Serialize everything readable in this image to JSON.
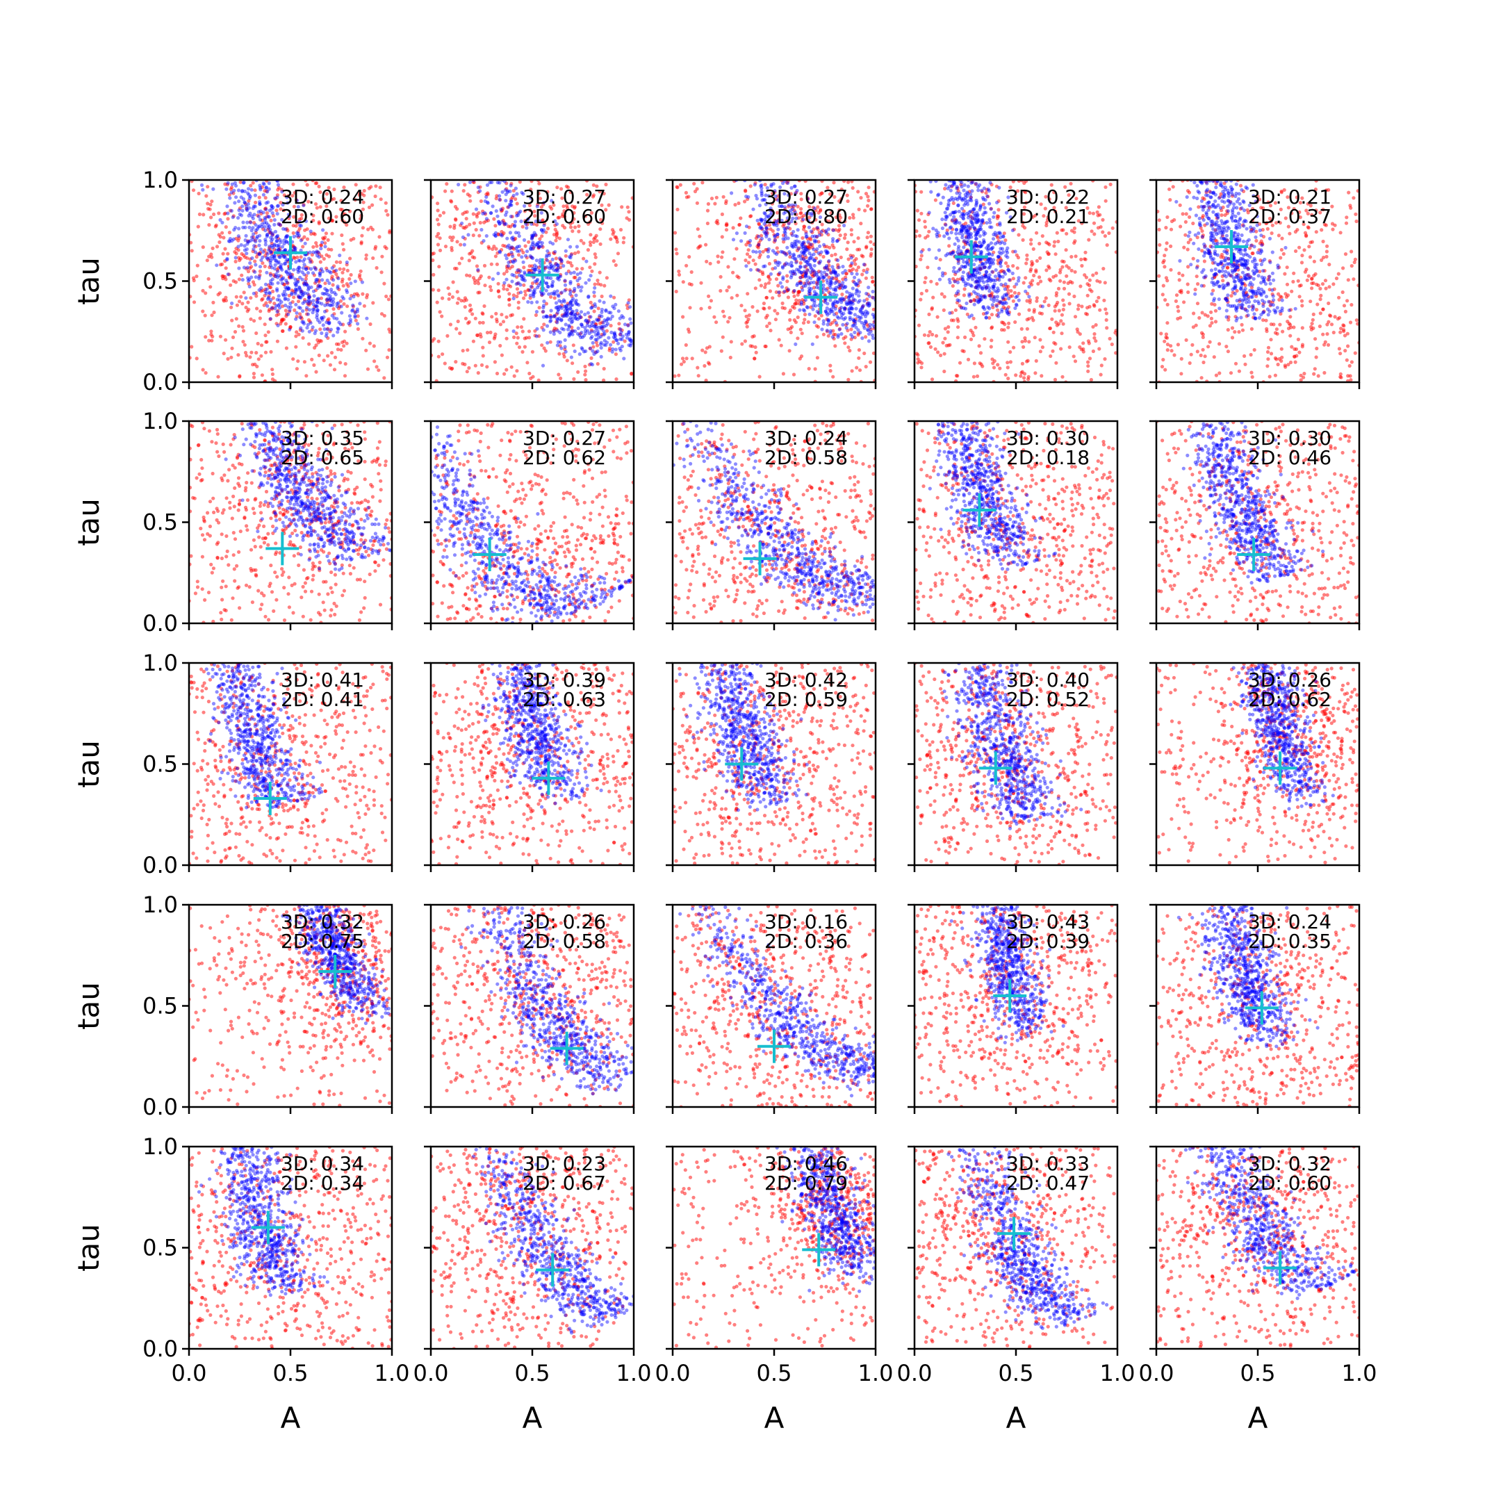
{
  "chart_data": {
    "type": "scatter",
    "layout": {
      "rows": 5,
      "cols": 5
    },
    "xlabel": "A",
    "ylabel": "tau",
    "xlim": [
      0,
      1
    ],
    "ylim": [
      0,
      1
    ],
    "xticks": [
      0.0,
      0.5,
      1.0
    ],
    "yticks": [
      0.0,
      0.5,
      1.0
    ],
    "xtick_labels": [
      "0.0",
      "0.5",
      "1.0"
    ],
    "ytick_labels": [
      "0.0",
      "0.5",
      "1.0"
    ],
    "grid": false,
    "colors": {
      "series_3d": "#0000ff",
      "series_2d": "#ff0000",
      "marker": "#17becf"
    },
    "panels": [
      {
        "label3d": "3D: 0.24",
        "label2d": "2D: 0.60",
        "marker": [
          0.5,
          0.64
        ],
        "blue": {
          "kind": "curve",
          "cx": 0.45,
          "cy": 0.62,
          "width": 0.1,
          "ext": 0.35,
          "slope": -1.9
        },
        "red": {
          "kind": "band",
          "cx": 0.5,
          "cy": 0.6,
          "spread": 0.28
        }
      },
      {
        "label3d": "3D: 0.27",
        "label2d": "2D: 0.60",
        "marker": [
          0.55,
          0.53
        ],
        "blue": {
          "kind": "curve",
          "cx": 0.58,
          "cy": 0.48,
          "width": 0.09,
          "ext": 0.48,
          "slope": -1.4
        },
        "red": {
          "kind": "band",
          "cx": 0.45,
          "cy": 0.58,
          "spread": 0.3
        }
      },
      {
        "label3d": "3D: 0.27",
        "label2d": "2D: 0.80",
        "marker": [
          0.73,
          0.42
        ],
        "blue": {
          "kind": "curve",
          "cx": 0.66,
          "cy": 0.58,
          "width": 0.09,
          "ext": 0.38,
          "slope": -1.6
        },
        "red": {
          "kind": "band",
          "cx": 0.7,
          "cy": 0.6,
          "spread": 0.26
        }
      },
      {
        "label3d": "3D: 0.22",
        "label2d": "2D: 0.21",
        "marker": [
          0.28,
          0.62
        ],
        "blue": {
          "kind": "curve",
          "cx": 0.28,
          "cy": 0.72,
          "width": 0.08,
          "ext": 0.3,
          "slope": -4.0
        },
        "red": {
          "kind": "band",
          "cx": 0.5,
          "cy": 0.45,
          "spread": 0.35
        }
      },
      {
        "label3d": "3D: 0.21",
        "label2d": "2D: 0.37",
        "marker": [
          0.37,
          0.67
        ],
        "blue": {
          "kind": "curve",
          "cx": 0.35,
          "cy": 0.72,
          "width": 0.08,
          "ext": 0.32,
          "slope": -4.0
        },
        "red": {
          "kind": "band",
          "cx": 0.55,
          "cy": 0.45,
          "spread": 0.4
        }
      },
      {
        "label3d": "3D: 0.35",
        "label2d": "2D: 0.65",
        "marker": [
          0.46,
          0.37
        ],
        "blue": {
          "kind": "curve",
          "cx": 0.55,
          "cy": 0.65,
          "width": 0.09,
          "ext": 0.35,
          "slope": -1.6
        },
        "red": {
          "kind": "band",
          "cx": 0.55,
          "cy": 0.62,
          "spread": 0.3
        }
      },
      {
        "label3d": "3D: 0.27",
        "label2d": "2D: 0.62",
        "marker": [
          0.29,
          0.34
        ],
        "blue": {
          "kind": "curve",
          "cx": 0.3,
          "cy": 0.35,
          "width": 0.09,
          "ext": 0.48,
          "slope": -1.2
        },
        "red": {
          "kind": "band",
          "cx": 0.5,
          "cy": 0.3,
          "spread": 0.34
        }
      },
      {
        "label3d": "3D: 0.24",
        "label2d": "2D: 0.58",
        "marker": [
          0.43,
          0.32
        ],
        "blue": {
          "kind": "curve",
          "cx": 0.55,
          "cy": 0.35,
          "width": 0.08,
          "ext": 0.45,
          "slope": -0.9
        },
        "red": {
          "kind": "band",
          "cx": 0.5,
          "cy": 0.4,
          "spread": 0.34
        }
      },
      {
        "label3d": "3D: 0.30",
        "label2d": "2D: 0.18",
        "marker": [
          0.32,
          0.56
        ],
        "blue": {
          "kind": "curve",
          "cx": 0.32,
          "cy": 0.68,
          "width": 0.08,
          "ext": 0.32,
          "slope": -3.0
        },
        "red": {
          "kind": "band",
          "cx": 0.45,
          "cy": 0.5,
          "spread": 0.34
        }
      },
      {
        "label3d": "3D: 0.30",
        "label2d": "2D: 0.46",
        "marker": [
          0.48,
          0.34
        ],
        "blue": {
          "kind": "curve",
          "cx": 0.4,
          "cy": 0.62,
          "width": 0.08,
          "ext": 0.35,
          "slope": -2.8
        },
        "red": {
          "kind": "band",
          "cx": 0.55,
          "cy": 0.45,
          "spread": 0.36
        }
      },
      {
        "label3d": "3D: 0.41",
        "label2d": "2D: 0.41",
        "marker": [
          0.4,
          0.33
        ],
        "blue": {
          "kind": "curve",
          "cx": 0.3,
          "cy": 0.7,
          "width": 0.08,
          "ext": 0.35,
          "slope": -4.0
        },
        "red": {
          "kind": "band",
          "cx": 0.4,
          "cy": 0.5,
          "spread": 0.36
        }
      },
      {
        "label3d": "3D: 0.39",
        "label2d": "2D: 0.63",
        "marker": [
          0.58,
          0.43
        ],
        "blue": {
          "kind": "curve",
          "cx": 0.5,
          "cy": 0.72,
          "width": 0.08,
          "ext": 0.3,
          "slope": -3.5
        },
        "red": {
          "kind": "band",
          "cx": 0.5,
          "cy": 0.6,
          "spread": 0.32
        }
      },
      {
        "label3d": "3D: 0.42",
        "label2d": "2D: 0.59",
        "marker": [
          0.34,
          0.5
        ],
        "blue": {
          "kind": "curve",
          "cx": 0.33,
          "cy": 0.7,
          "width": 0.08,
          "ext": 0.32,
          "slope": -3.5
        },
        "red": {
          "kind": "band",
          "cx": 0.45,
          "cy": 0.55,
          "spread": 0.32
        }
      },
      {
        "label3d": "3D: 0.40",
        "label2d": "2D: 0.52",
        "marker": [
          0.4,
          0.48
        ],
        "blue": {
          "kind": "curve",
          "cx": 0.42,
          "cy": 0.6,
          "width": 0.08,
          "ext": 0.32,
          "slope": -3.0
        },
        "red": {
          "kind": "band",
          "cx": 0.45,
          "cy": 0.55,
          "spread": 0.32
        }
      },
      {
        "label3d": "3D: 0.26",
        "label2d": "2D: 0.62",
        "marker": [
          0.61,
          0.48
        ],
        "blue": {
          "kind": "curve",
          "cx": 0.6,
          "cy": 0.7,
          "width": 0.07,
          "ext": 0.28,
          "slope": -4.0
        },
        "red": {
          "kind": "band",
          "cx": 0.7,
          "cy": 0.62,
          "spread": 0.24
        }
      },
      {
        "label3d": "3D: 0.32",
        "label2d": "2D: 0.75",
        "marker": [
          0.72,
          0.67
        ],
        "blue": {
          "kind": "curve",
          "cx": 0.7,
          "cy": 0.8,
          "width": 0.07,
          "ext": 0.25,
          "slope": -2.5
        },
        "red": {
          "kind": "band",
          "cx": 0.72,
          "cy": 0.7,
          "spread": 0.22
        }
      },
      {
        "label3d": "3D: 0.26",
        "label2d": "2D: 0.58",
        "marker": [
          0.67,
          0.29
        ],
        "blue": {
          "kind": "curve",
          "cx": 0.58,
          "cy": 0.45,
          "width": 0.08,
          "ext": 0.42,
          "slope": -1.5
        },
        "red": {
          "kind": "band",
          "cx": 0.55,
          "cy": 0.55,
          "spread": 0.32
        }
      },
      {
        "label3d": "3D: 0.16",
        "label2d": "2D: 0.36",
        "marker": [
          0.5,
          0.3
        ],
        "blue": {
          "kind": "curve",
          "cx": 0.62,
          "cy": 0.38,
          "width": 0.07,
          "ext": 0.48,
          "slope": -0.9
        },
        "red": {
          "kind": "band",
          "cx": 0.5,
          "cy": 0.55,
          "spread": 0.34
        }
      },
      {
        "label3d": "3D: 0.43",
        "label2d": "2D: 0.39",
        "marker": [
          0.47,
          0.55
        ],
        "blue": {
          "kind": "curve",
          "cx": 0.45,
          "cy": 0.75,
          "width": 0.07,
          "ext": 0.28,
          "slope": -5.0
        },
        "red": {
          "kind": "band",
          "cx": 0.5,
          "cy": 0.65,
          "spread": 0.3
        }
      },
      {
        "label3d": "3D: 0.24",
        "label2d": "2D: 0.35",
        "marker": [
          0.52,
          0.49
        ],
        "blue": {
          "kind": "curve",
          "cx": 0.42,
          "cy": 0.7,
          "width": 0.08,
          "ext": 0.3,
          "slope": -3.5
        },
        "red": {
          "kind": "band",
          "cx": 0.55,
          "cy": 0.5,
          "spread": 0.36
        }
      },
      {
        "label3d": "3D: 0.34",
        "label2d": "2D: 0.34",
        "marker": [
          0.39,
          0.6
        ],
        "blue": {
          "kind": "curve",
          "cx": 0.34,
          "cy": 0.68,
          "width": 0.08,
          "ext": 0.32,
          "slope": -4.0
        },
        "red": {
          "kind": "band",
          "cx": 0.45,
          "cy": 0.48,
          "spread": 0.36
        }
      },
      {
        "label3d": "3D: 0.23",
        "label2d": "2D: 0.67",
        "marker": [
          0.6,
          0.39
        ],
        "blue": {
          "kind": "curve",
          "cx": 0.55,
          "cy": 0.5,
          "width": 0.08,
          "ext": 0.45,
          "slope": -1.7
        },
        "red": {
          "kind": "band",
          "cx": 0.45,
          "cy": 0.62,
          "spread": 0.3
        }
      },
      {
        "label3d": "3D: 0.46",
        "label2d": "2D: 0.79",
        "marker": [
          0.72,
          0.49
        ],
        "blue": {
          "kind": "curve",
          "cx": 0.78,
          "cy": 0.7,
          "width": 0.07,
          "ext": 0.28,
          "slope": -2.5
        },
        "red": {
          "kind": "band",
          "cx": 0.82,
          "cy": 0.7,
          "spread": 0.2
        }
      },
      {
        "label3d": "3D: 0.33",
        "label2d": "2D: 0.47",
        "marker": [
          0.49,
          0.57
        ],
        "blue": {
          "kind": "curve",
          "cx": 0.5,
          "cy": 0.5,
          "width": 0.08,
          "ext": 0.35,
          "slope": -2.2
        },
        "red": {
          "kind": "band",
          "cx": 0.4,
          "cy": 0.58,
          "spread": 0.32
        }
      },
      {
        "label3d": "3D: 0.32",
        "label2d": "2D: 0.60",
        "marker": [
          0.61,
          0.4
        ],
        "blue": {
          "kind": "curve",
          "cx": 0.48,
          "cy": 0.65,
          "width": 0.08,
          "ext": 0.4,
          "slope": -1.8
        },
        "red": {
          "kind": "band",
          "cx": 0.5,
          "cy": 0.65,
          "spread": 0.3
        }
      }
    ]
  }
}
